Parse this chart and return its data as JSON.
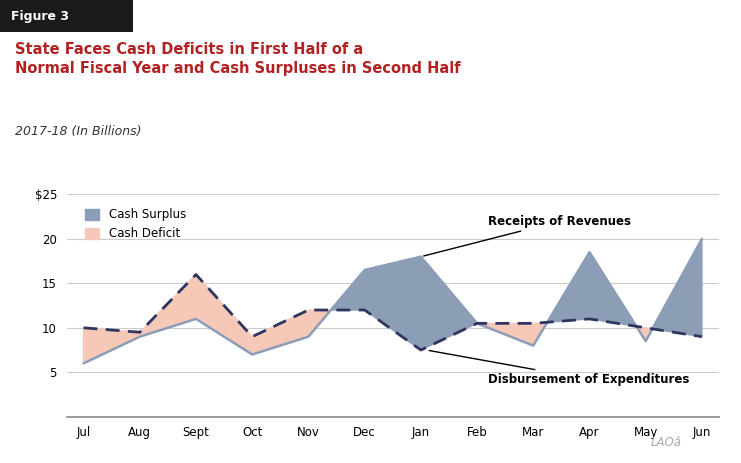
{
  "months": [
    "Jul",
    "Aug",
    "Sept",
    "Oct",
    "Nov",
    "Dec",
    "Jan",
    "Feb",
    "Mar",
    "Apr",
    "May",
    "Jun"
  ],
  "revenues": [
    6.0,
    9.0,
    11.0,
    7.0,
    9.0,
    16.5,
    18.0,
    10.5,
    8.0,
    18.5,
    8.5,
    20.0
  ],
  "expenditures": [
    10.0,
    9.5,
    16.0,
    9.0,
    12.0,
    12.0,
    7.5,
    10.5,
    10.5,
    11.0,
    10.0,
    9.0
  ],
  "surplus_color": "#8c9eb5",
  "deficit_color": "#f5c8b8",
  "expenditure_line_color": "#2e3560",
  "revenue_line_color": "#8c9eb5",
  "figure3_bg": "#1a1a1a",
  "figure3_text": "#ffffff",
  "title_color": "#b22222",
  "subtitle_color": "#333333",
  "ylim": [
    0,
    25
  ],
  "yticks": [
    5,
    10,
    15,
    20,
    25
  ],
  "ytick_labels": [
    "5",
    "10",
    "15",
    "20",
    "$25"
  ],
  "grid_color": "#cccccc",
  "title_line1": "State Faces Cash Deficits in First Half of a",
  "title_line2": "Normal Fiscal Year and Cash Surpluses in Second Half",
  "subtitle": "2017-18 (In Billions)",
  "figure_label": "Figure 3",
  "annotation_revenues": "Receipts of Revenues",
  "annotation_expenditures": "Disbursement of Expenditures"
}
